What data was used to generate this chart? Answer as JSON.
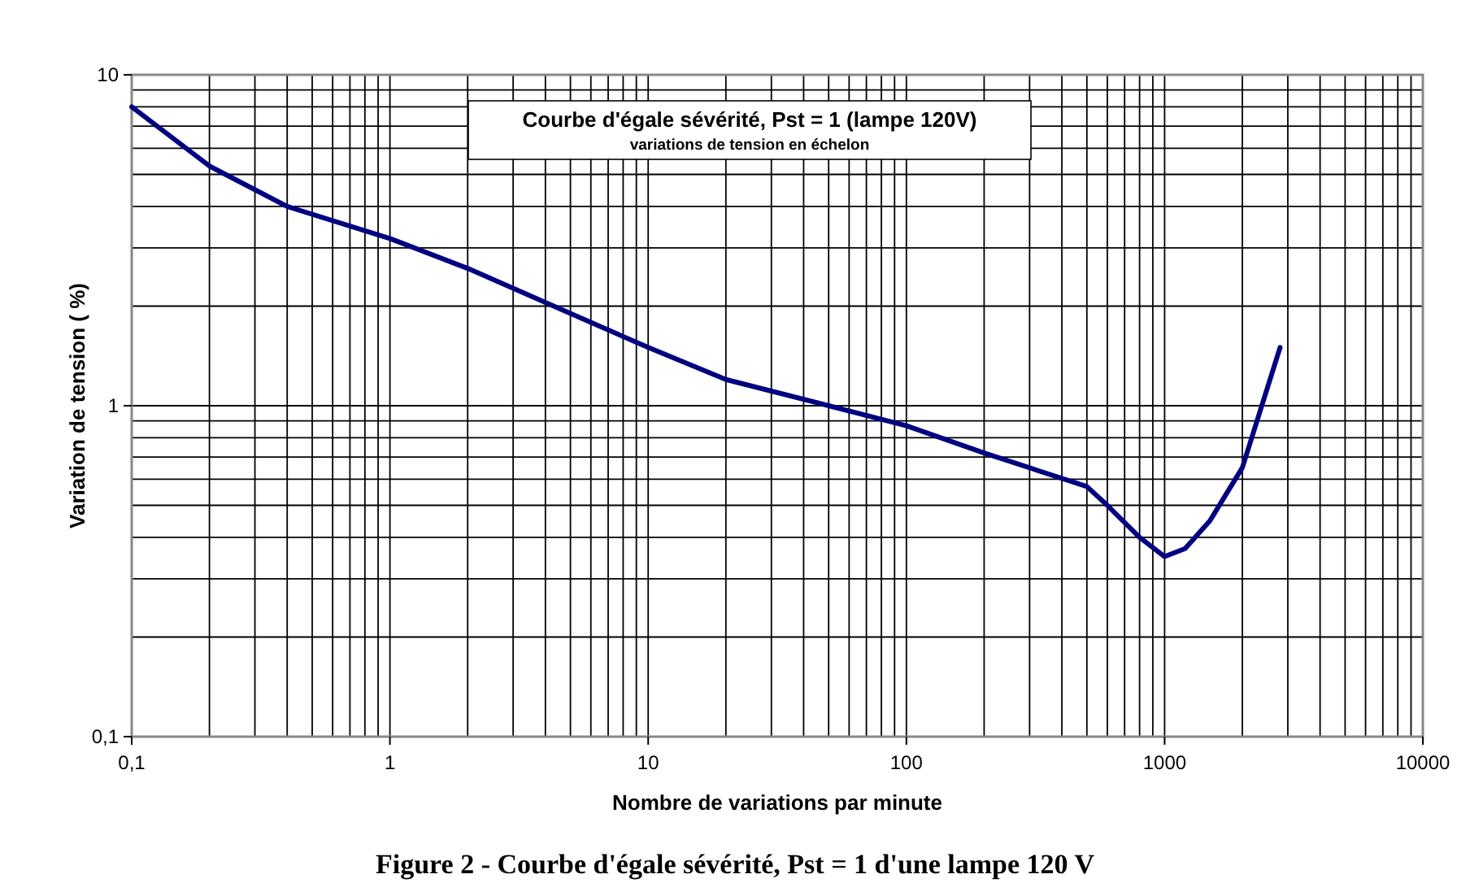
{
  "chart_data": {
    "type": "line",
    "title": "Courbe d'égale sévérité, Pst = 1 (lampe 120V)",
    "subtitle": "variations de tension en échelon",
    "xlabel": "Nombre de variations par minute",
    "ylabel": "Variation de tension ( %)",
    "annotations": [
      "Figure 2 - Courbe d'égale sévérité, Pst = 1 d'une lampe 120 V"
    ],
    "log": "xy",
    "grid": true,
    "marker": "none",
    "line_style": "solid",
    "xlim": [
      0.1,
      10000
    ],
    "ylim": [
      0.1,
      10
    ],
    "xticks": [
      {
        "value": 0.1,
        "label": "0,1"
      },
      1,
      10,
      100,
      1000,
      10000
    ],
    "yticks": [
      {
        "value": 0.1,
        "label": "0,1"
      },
      1,
      10
    ],
    "series": [
      {
        "color": "#000080",
        "x": [
          0.1,
          0.2,
          0.4,
          1,
          2,
          5,
          10,
          20,
          50,
          100,
          200,
          500,
          600,
          800,
          1000,
          1200,
          1500,
          2000,
          2800
        ],
        "values": [
          8,
          5.3,
          4.0,
          3.2,
          2.6,
          1.9,
          1.5,
          1.2,
          1.0,
          0.87,
          0.72,
          0.57,
          0.5,
          0.4,
          0.35,
          0.37,
          0.45,
          0.65,
          1.5
        ]
      }
    ]
  }
}
